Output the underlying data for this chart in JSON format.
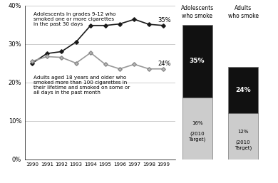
{
  "years": [
    1990,
    1991,
    1992,
    1993,
    1994,
    1995,
    1996,
    1997,
    1998,
    1999
  ],
  "adolescents": [
    25.0,
    27.5,
    28.0,
    30.5,
    34.8,
    34.8,
    35.2,
    36.4,
    35.1,
    34.8
  ],
  "adults": [
    25.5,
    26.7,
    26.5,
    25.0,
    27.7,
    24.7,
    23.5,
    24.7,
    23.5,
    23.5
  ],
  "adolescent_label": "Adolescents in grades 9-12 who\nsmoked one or more cigarettes\nin the past 30 days",
  "adult_label": "Adults aged 18 years and older who\nsmoked more than 100 cigarettes in\ntheir lifetime and smoked on some or\nall days in the past month",
  "adolescent_end_val": "35%",
  "adult_end_val": "24%",
  "bar1_actual": 35,
  "bar1_target": 16,
  "bar1_title_line1": "Adolescents",
  "bar1_title_line2": "who smoke",
  "bar2_actual": 24,
  "bar2_target": 12,
  "bar2_title_line1": "Adults",
  "bar2_title_line2": "who smoke",
  "ylim": [
    0,
    40
  ],
  "yticks": [
    0,
    10,
    20,
    30,
    40
  ],
  "ytick_labels": [
    "0%",
    "10%",
    "20%",
    "30%",
    "40%"
  ],
  "line_color_adolescent": "#1a1a1a",
  "line_color_adult": "#999999",
  "marker_style_adolescent": "D",
  "marker_style_adult": "D",
  "bar_color_black": "#111111",
  "bar_color_gray": "#cccccc",
  "background_color": "#ffffff"
}
